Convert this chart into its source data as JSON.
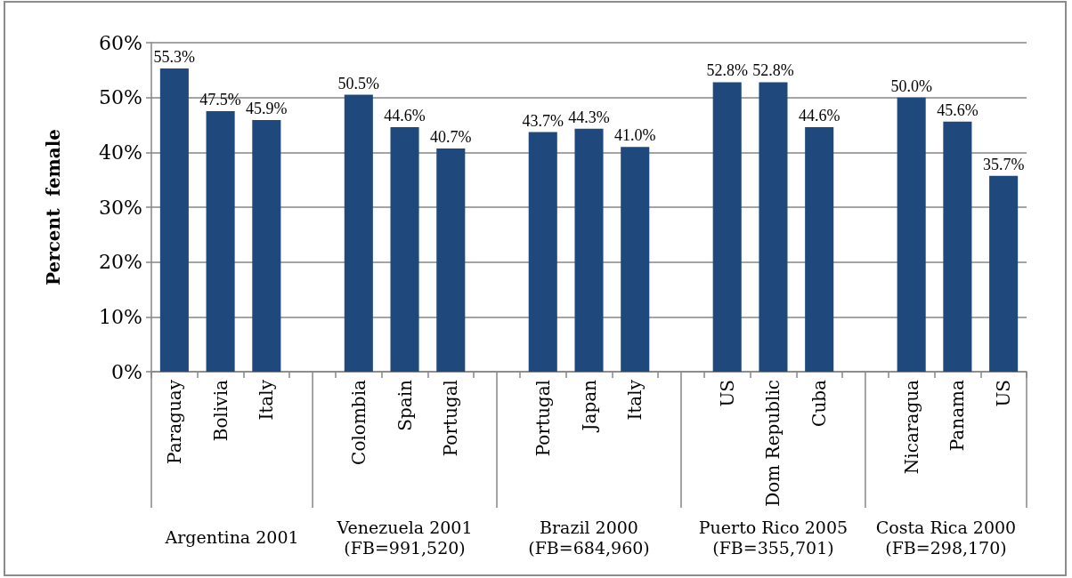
{
  "chart_data": {
    "type": "bar",
    "ylabel": "Percent  female",
    "categories": [
      "Paraguay",
      "Bolivia",
      "Italy",
      null,
      "Colombia",
      "Spain",
      "Portugal",
      null,
      "Portugal",
      "Japan",
      "Italy",
      null,
      "US",
      "Dom Republic",
      "Cuba",
      null,
      "Nicaragua",
      "Panama",
      "US"
    ],
    "values": [
      55.3,
      47.5,
      45.9,
      null,
      50.5,
      44.6,
      40.7,
      null,
      43.7,
      44.3,
      41.0,
      null,
      52.8,
      52.8,
      44.6,
      null,
      50.0,
      45.6,
      35.7
    ],
    "value_labels": [
      "55.3%",
      "47.5%",
      "45.9%",
      null,
      "50.5%",
      "44.6%",
      "40.7%",
      null,
      "43.7%",
      "44.3%",
      "41.0%",
      null,
      "52.8%",
      "52.8%",
      "44.6%",
      null,
      "50.0%",
      "45.6%",
      "35.7%"
    ],
    "color": "#1f497d",
    "ylim": [
      0,
      60
    ],
    "yticks": [
      {
        "value": 0,
        "label": "0%"
      },
      {
        "value": 10,
        "label": "10%"
      },
      {
        "value": 20,
        "label": "20%"
      },
      {
        "value": 30,
        "label": "30%"
      },
      {
        "value": 40,
        "label": "40%"
      },
      {
        "value": 50,
        "label": "50%"
      },
      {
        "value": 60,
        "label": "60%"
      }
    ],
    "grid": "y",
    "annotations": [
      "Argentina 2001",
      "Venezuela 2001\n(FB=991,520)",
      "Brazil 2000\n(FB=684,960)",
      "Puerto Rico 2005\n(FB=355,701)",
      "Costa Rica 2000\n(FB=298,170)"
    ]
  }
}
